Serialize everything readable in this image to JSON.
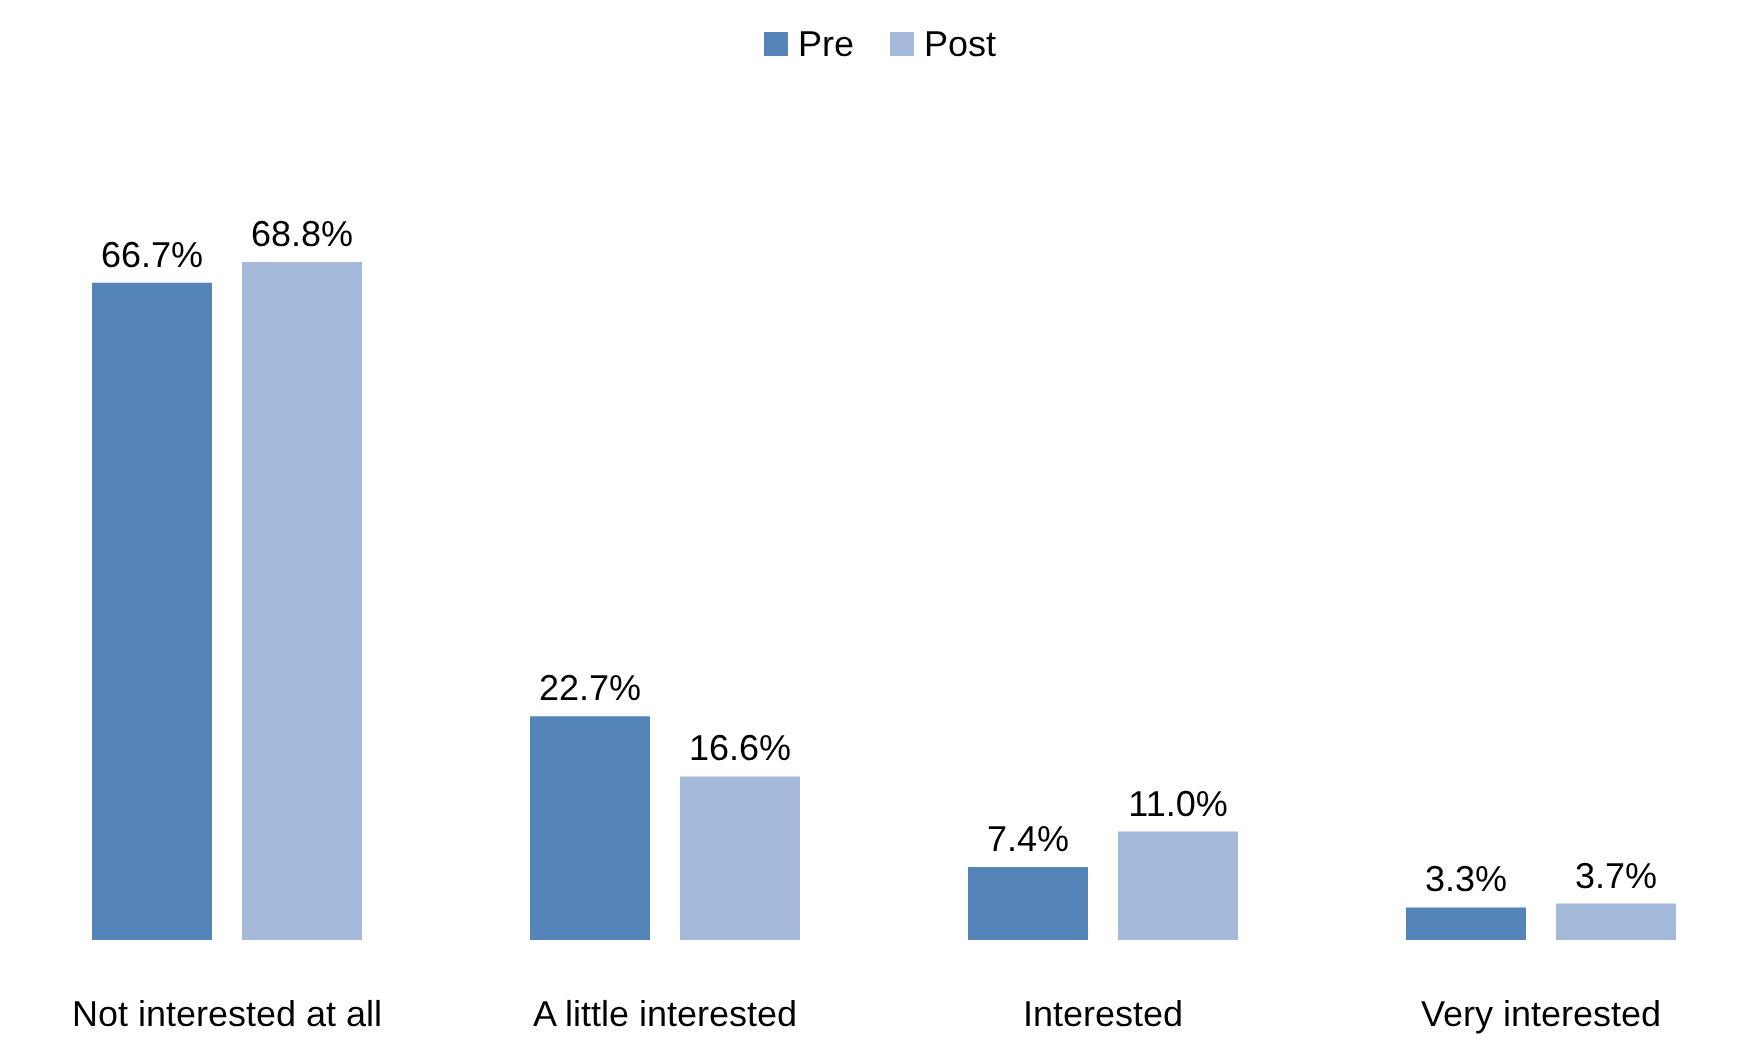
{
  "chart_data": {
    "type": "bar",
    "categories": [
      "Not interested at all",
      "A little interested",
      "Interested",
      "Very interested"
    ],
    "series": [
      {
        "name": "Pre",
        "color": "#5584b8",
        "values": [
          66.7,
          22.7,
          7.4,
          3.3
        ],
        "value_labels": [
          "66.7%",
          "22.7%",
          "7.4%",
          "3.3%"
        ]
      },
      {
        "name": "Post",
        "color": "#a5b9da",
        "values": [
          68.8,
          16.6,
          11.0,
          3.7
        ],
        "value_labels": [
          "68.8%",
          "16.6%",
          "11.0%",
          "3.7%"
        ]
      }
    ],
    "legend": "top"
  }
}
